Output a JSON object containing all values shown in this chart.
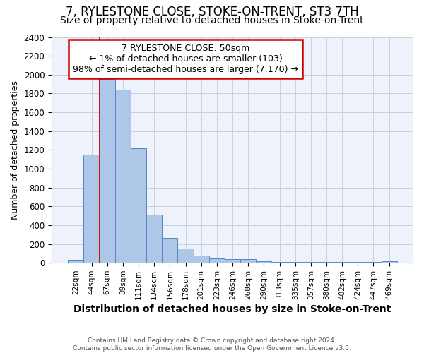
{
  "title": "7, RYLESTONE CLOSE, STOKE-ON-TRENT, ST3 7TH",
  "subtitle": "Size of property relative to detached houses in Stoke-on-Trent",
  "xlabel": "Distribution of detached houses by size in Stoke-on-Trent",
  "ylabel": "Number of detached properties",
  "categories": [
    "22sqm",
    "44sqm",
    "67sqm",
    "89sqm",
    "111sqm",
    "134sqm",
    "156sqm",
    "178sqm",
    "201sqm",
    "223sqm",
    "246sqm",
    "268sqm",
    "290sqm",
    "313sqm",
    "335sqm",
    "357sqm",
    "380sqm",
    "402sqm",
    "424sqm",
    "447sqm",
    "469sqm"
  ],
  "values": [
    30,
    1150,
    1950,
    1840,
    1220,
    515,
    265,
    150,
    80,
    50,
    42,
    42,
    15,
    10,
    10,
    10,
    10,
    10,
    10,
    10,
    15
  ],
  "bar_color": "#aec6e8",
  "bar_edge_color": "#5585c5",
  "red_line_color": "#cc0000",
  "red_line_x": 1.5,
  "annotation_text": "7 RYLESTONE CLOSE: 50sqm\n← 1% of detached houses are smaller (103)\n98% of semi-detached houses are larger (7,170) →",
  "annotation_box_color": "#ffffff",
  "annotation_box_edge": "#cc0000",
  "ylim": [
    0,
    2400
  ],
  "yticks": [
    0,
    200,
    400,
    600,
    800,
    1000,
    1200,
    1400,
    1600,
    1800,
    2000,
    2200,
    2400
  ],
  "footer_text": "Contains HM Land Registry data © Crown copyright and database right 2024.\nContains public sector information licensed under the Open Government Licence v3.0.",
  "bg_color": "#eef2fb",
  "grid_color": "#c8cfe0",
  "title_fontsize": 12,
  "subtitle_fontsize": 10,
  "annot_fontsize": 9,
  "ylabel_fontsize": 9,
  "xlabel_fontsize": 10
}
